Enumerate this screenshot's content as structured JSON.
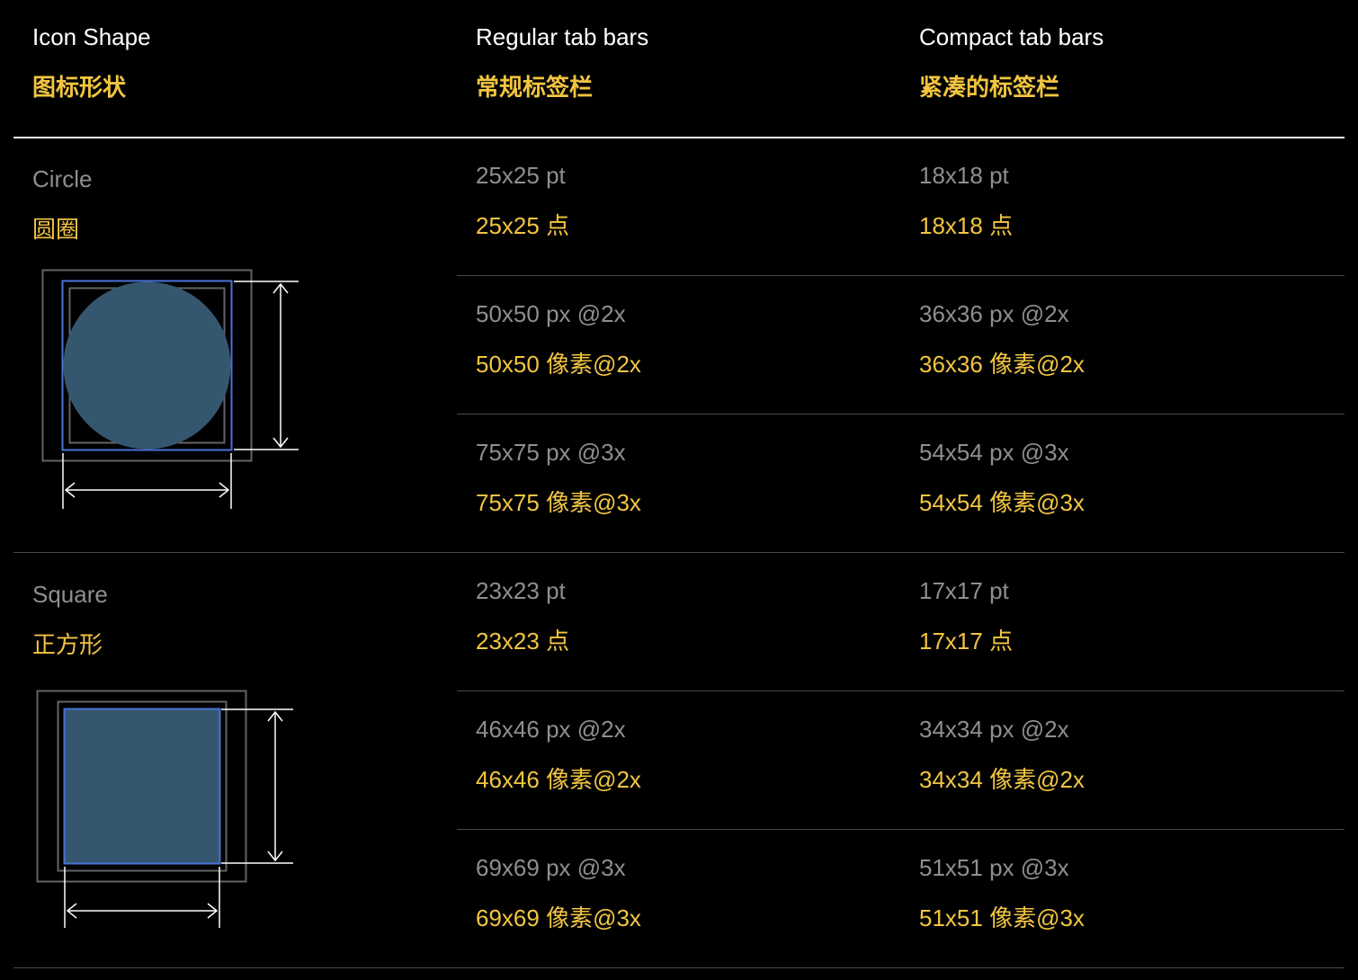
{
  "header": {
    "shape": {
      "en": "Icon Shape",
      "zh": "图标形状"
    },
    "regular": {
      "en": "Regular tab bars",
      "zh": "常规标签栏"
    },
    "compact": {
      "en": "Compact tab bars",
      "zh": "紧凑的标签栏"
    }
  },
  "rows": [
    {
      "shape": {
        "en": "Circle",
        "zh": "圆圈"
      },
      "sizes": [
        {
          "regular": {
            "en": "25x25 pt",
            "zh": "25x25 点"
          },
          "compact": {
            "en": "18x18 pt",
            "zh": "18x18 点"
          }
        },
        {
          "regular": {
            "en": "50x50 px @2x",
            "zh": "50x50 像素@2x"
          },
          "compact": {
            "en": "36x36 px @2x",
            "zh": "36x36 像素@2x"
          }
        },
        {
          "regular": {
            "en": "75x75 px @3x",
            "zh": "75x75 像素@3x"
          },
          "compact": {
            "en": "54x54 px @3x",
            "zh": "54x54 像素@3x"
          }
        }
      ]
    },
    {
      "shape": {
        "en": "Square",
        "zh": "正方形"
      },
      "sizes": [
        {
          "regular": {
            "en": "23x23 pt",
            "zh": "23x23 点"
          },
          "compact": {
            "en": "17x17 pt",
            "zh": "17x17 点"
          }
        },
        {
          "regular": {
            "en": "46x46 px @2x",
            "zh": "46x46 像素@2x"
          },
          "compact": {
            "en": "34x34 px @2x",
            "zh": "34x34 像素@2x"
          }
        },
        {
          "regular": {
            "en": "69x69 px @3x",
            "zh": "69x69 像素@3x"
          },
          "compact": {
            "en": "51x51 px @3x",
            "zh": "51x51 像素@3x"
          }
        }
      ]
    }
  ],
  "colors": {
    "background": "#000000",
    "english_text": "#8e8e93",
    "chinese_text": "#f2c541",
    "glyph_fill": "#35566f",
    "glyph_outline": "#4a72d8"
  }
}
